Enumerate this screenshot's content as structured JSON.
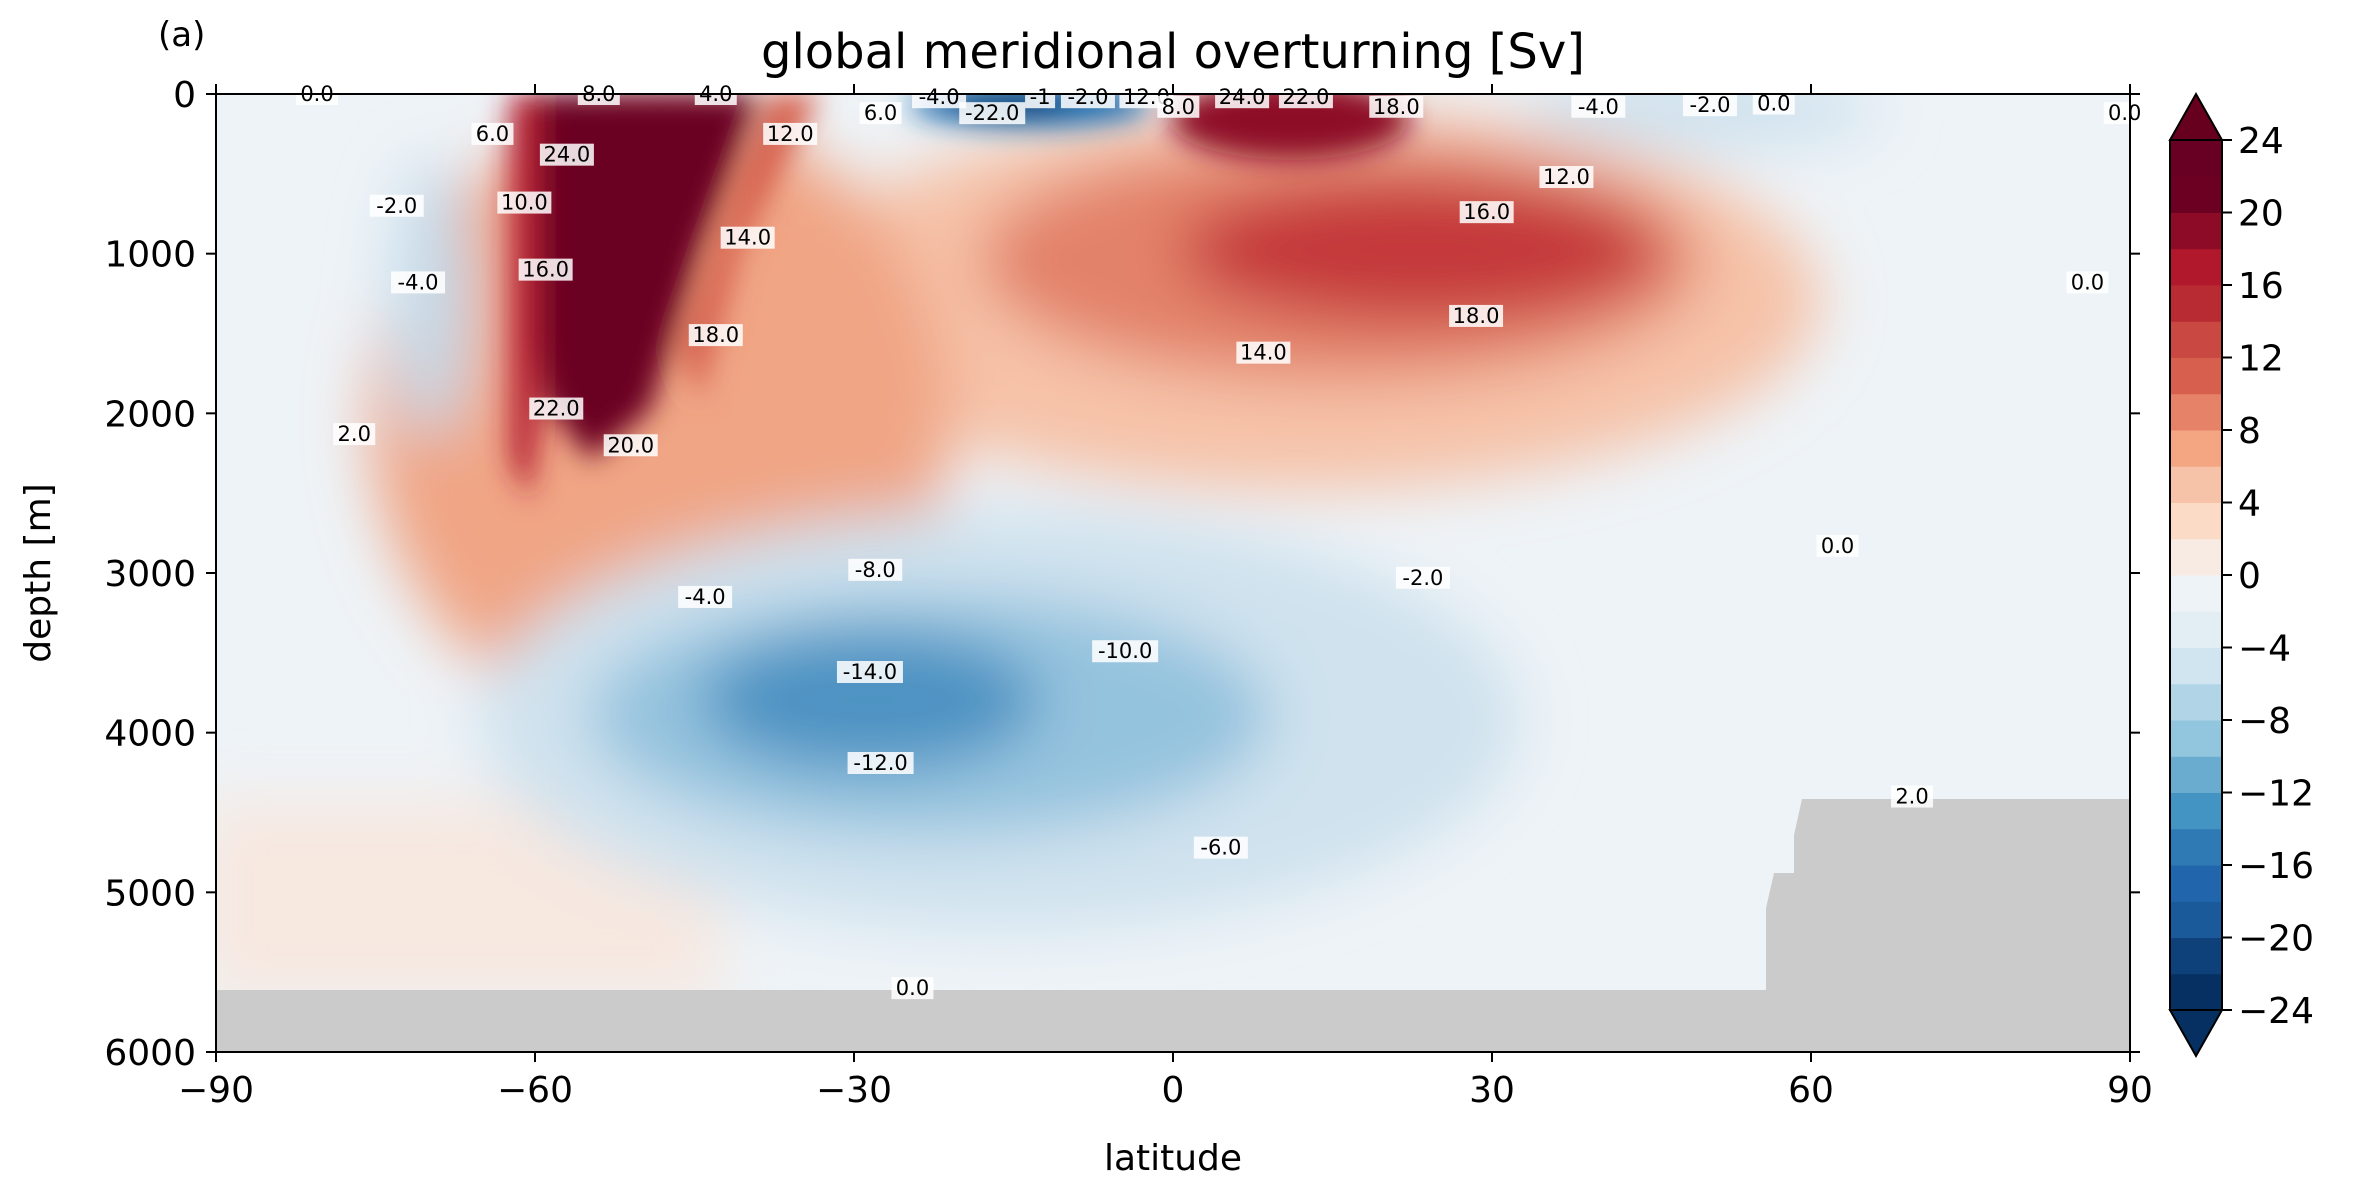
{
  "panel_label": "(a)",
  "chart_data": {
    "type": "contourf",
    "title": "global meridional overturning [Sv]",
    "xlabel": "latitude",
    "ylabel": "depth [m]",
    "xlim": [
      -90,
      90
    ],
    "ylim": [
      6000,
      0
    ],
    "xticks": [
      -90,
      -60,
      -30,
      0,
      30,
      60,
      90
    ],
    "xtick_labels": [
      "−90",
      "−60",
      "−30",
      "0",
      "30",
      "60",
      "90"
    ],
    "yticks": [
      0,
      1000,
      2000,
      3000,
      4000,
      5000,
      6000
    ],
    "ytick_labels": [
      "0",
      "1000",
      "2000",
      "3000",
      "4000",
      "5000",
      "6000"
    ],
    "colormap": "RdBu_r",
    "colorbar": {
      "levels": [
        -24,
        -22,
        -20,
        -18,
        -16,
        -14,
        -12,
        -10,
        -8,
        -6,
        -4,
        -2,
        0,
        2,
        4,
        6,
        8,
        10,
        12,
        14,
        16,
        18,
        20,
        22,
        24
      ],
      "ticks": [
        24,
        20,
        16,
        12,
        8,
        4,
        0,
        -4,
        -8,
        -12,
        -16,
        -20,
        -24
      ],
      "tick_labels": [
        "24",
        "20",
        "16",
        "12",
        "8",
        "4",
        "0",
        "−4",
        "−8",
        "−12",
        "−16",
        "−20",
        "−24"
      ],
      "extend": "both"
    },
    "contour_labels": [
      {
        "text": "0.0",
        "lat": -80.5,
        "depth": 0
      },
      {
        "text": "6.0",
        "lat": -64,
        "depth": 250
      },
      {
        "text": "8.0",
        "lat": -54,
        "depth": 0
      },
      {
        "text": "4.0",
        "lat": -43,
        "depth": 0
      },
      {
        "text": "12.0",
        "lat": -36,
        "depth": 250
      },
      {
        "text": "24.0",
        "lat": -57,
        "depth": 380
      },
      {
        "text": "-2.0",
        "lat": -73,
        "depth": 700
      },
      {
        "text": "10.0",
        "lat": -61,
        "depth": 680
      },
      {
        "text": "14.0",
        "lat": -40,
        "depth": 900
      },
      {
        "text": "-4.0",
        "lat": -71,
        "depth": 1180
      },
      {
        "text": "16.0",
        "lat": -59,
        "depth": 1100
      },
      {
        "text": "18.0",
        "lat": -43,
        "depth": 1510
      },
      {
        "text": "2.0",
        "lat": -77,
        "depth": 2130
      },
      {
        "text": "22.0",
        "lat": -58,
        "depth": 1970
      },
      {
        "text": "20.0",
        "lat": -51,
        "depth": 2200
      },
      {
        "text": "6.0",
        "lat": -27.5,
        "depth": 120
      },
      {
        "text": "-4.0",
        "lat": -22,
        "depth": 20
      },
      {
        "text": "-22.0",
        "lat": -17,
        "depth": 120
      },
      {
        "text": "-1",
        "lat": -12.5,
        "depth": 20
      },
      {
        "text": "-2.0",
        "lat": -8,
        "depth": 20
      },
      {
        "text": "12.0",
        "lat": -2.5,
        "depth": 20
      },
      {
        "text": "8.0",
        "lat": 0.5,
        "depth": 80
      },
      {
        "text": "24.0",
        "lat": 6.5,
        "depth": 20
      },
      {
        "text": "22.0",
        "lat": 12.5,
        "depth": 20
      },
      {
        "text": "18.0",
        "lat": 21,
        "depth": 80
      },
      {
        "text": "-4.0",
        "lat": 40,
        "depth": 80
      },
      {
        "text": "-2.0",
        "lat": 50.5,
        "depth": 70
      },
      {
        "text": "0.0",
        "lat": 56.5,
        "depth": 60
      },
      {
        "text": "0.0",
        "lat": 89.5,
        "depth": 120
      },
      {
        "text": "12.0",
        "lat": 37,
        "depth": 520
      },
      {
        "text": "16.0",
        "lat": 29.5,
        "depth": 740
      },
      {
        "text": "0.0",
        "lat": 86,
        "depth": 1180
      },
      {
        "text": "18.0",
        "lat": 28.5,
        "depth": 1390
      },
      {
        "text": "14.0",
        "lat": 8.5,
        "depth": 1620
      },
      {
        "text": "-4.0",
        "lat": -44,
        "depth": 3150
      },
      {
        "text": "-8.0",
        "lat": -28,
        "depth": 2980
      },
      {
        "text": "-2.0",
        "lat": 23.5,
        "depth": 3030
      },
      {
        "text": "0.0",
        "lat": 62.5,
        "depth": 2830
      },
      {
        "text": "-14.0",
        "lat": -28.5,
        "depth": 3620
      },
      {
        "text": "-10.0",
        "lat": -4.5,
        "depth": 3490
      },
      {
        "text": "-12.0",
        "lat": -27.5,
        "depth": 4190
      },
      {
        "text": "2.0",
        "lat": 69.5,
        "depth": 4400
      },
      {
        "text": "-6.0",
        "lat": 4.5,
        "depth": 4720
      },
      {
        "text": "0.0",
        "lat": -24.5,
        "depth": 5600
      }
    ],
    "land_mask": {
      "description": "grey bathymetry",
      "bottom_depth": 5600,
      "north_shelf_depth": 4400
    }
  }
}
